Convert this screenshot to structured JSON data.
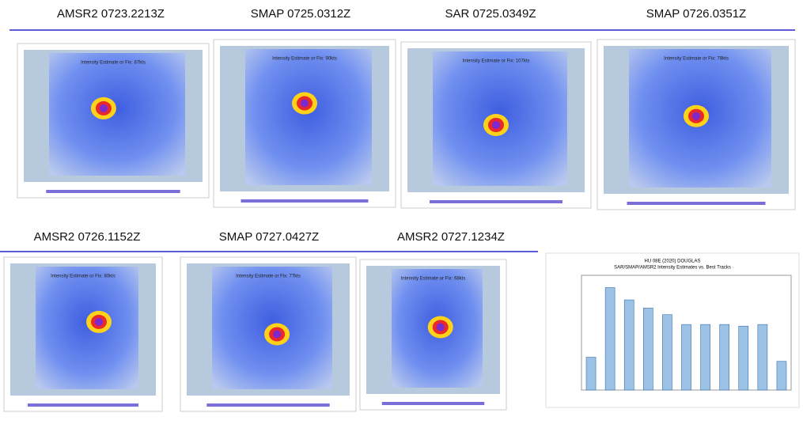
{
  "header": {
    "row_1": [
      "AMSR2 0723.2213Z",
      "SMAP 0725.0312Z",
      "SAR 0725.0349Z",
      "SMAP 0726.0351Z"
    ],
    "row_2": [
      "AMSR2 0726.1152Z",
      "SMAP 0727.0427Z",
      "AMSR2 0727.1234Z"
    ]
  },
  "panels": [
    {
      "caption": "Intensity Estimate or Fix: 87kts"
    },
    {
      "caption": "Intensity Estimate or Fix: 90kts"
    },
    {
      "caption": "Intensity Estimate or Fix: 107kts"
    },
    {
      "caption": "Intensity Estimate or Fix: 78kts"
    },
    {
      "caption": "Intensity Estimate or Fix: 80kts"
    },
    {
      "caption": "Intensity Estimate or Fix: 77kts"
    },
    {
      "caption": "Intensity Estimate or Fix: 68kts"
    }
  ],
  "chart_data": {
    "type": "bar",
    "title": "HU 08E (2020) DOUGLAS",
    "subtitle": "SAR/SMAP/AMSR2 Intensity Estimates vs. Best Tracks",
    "values": [
      40,
      125,
      110,
      100,
      92,
      80,
      80,
      80,
      78,
      80,
      35
    ],
    "ylim": [
      0,
      140
    ],
    "color": "#9cc3e6"
  }
}
